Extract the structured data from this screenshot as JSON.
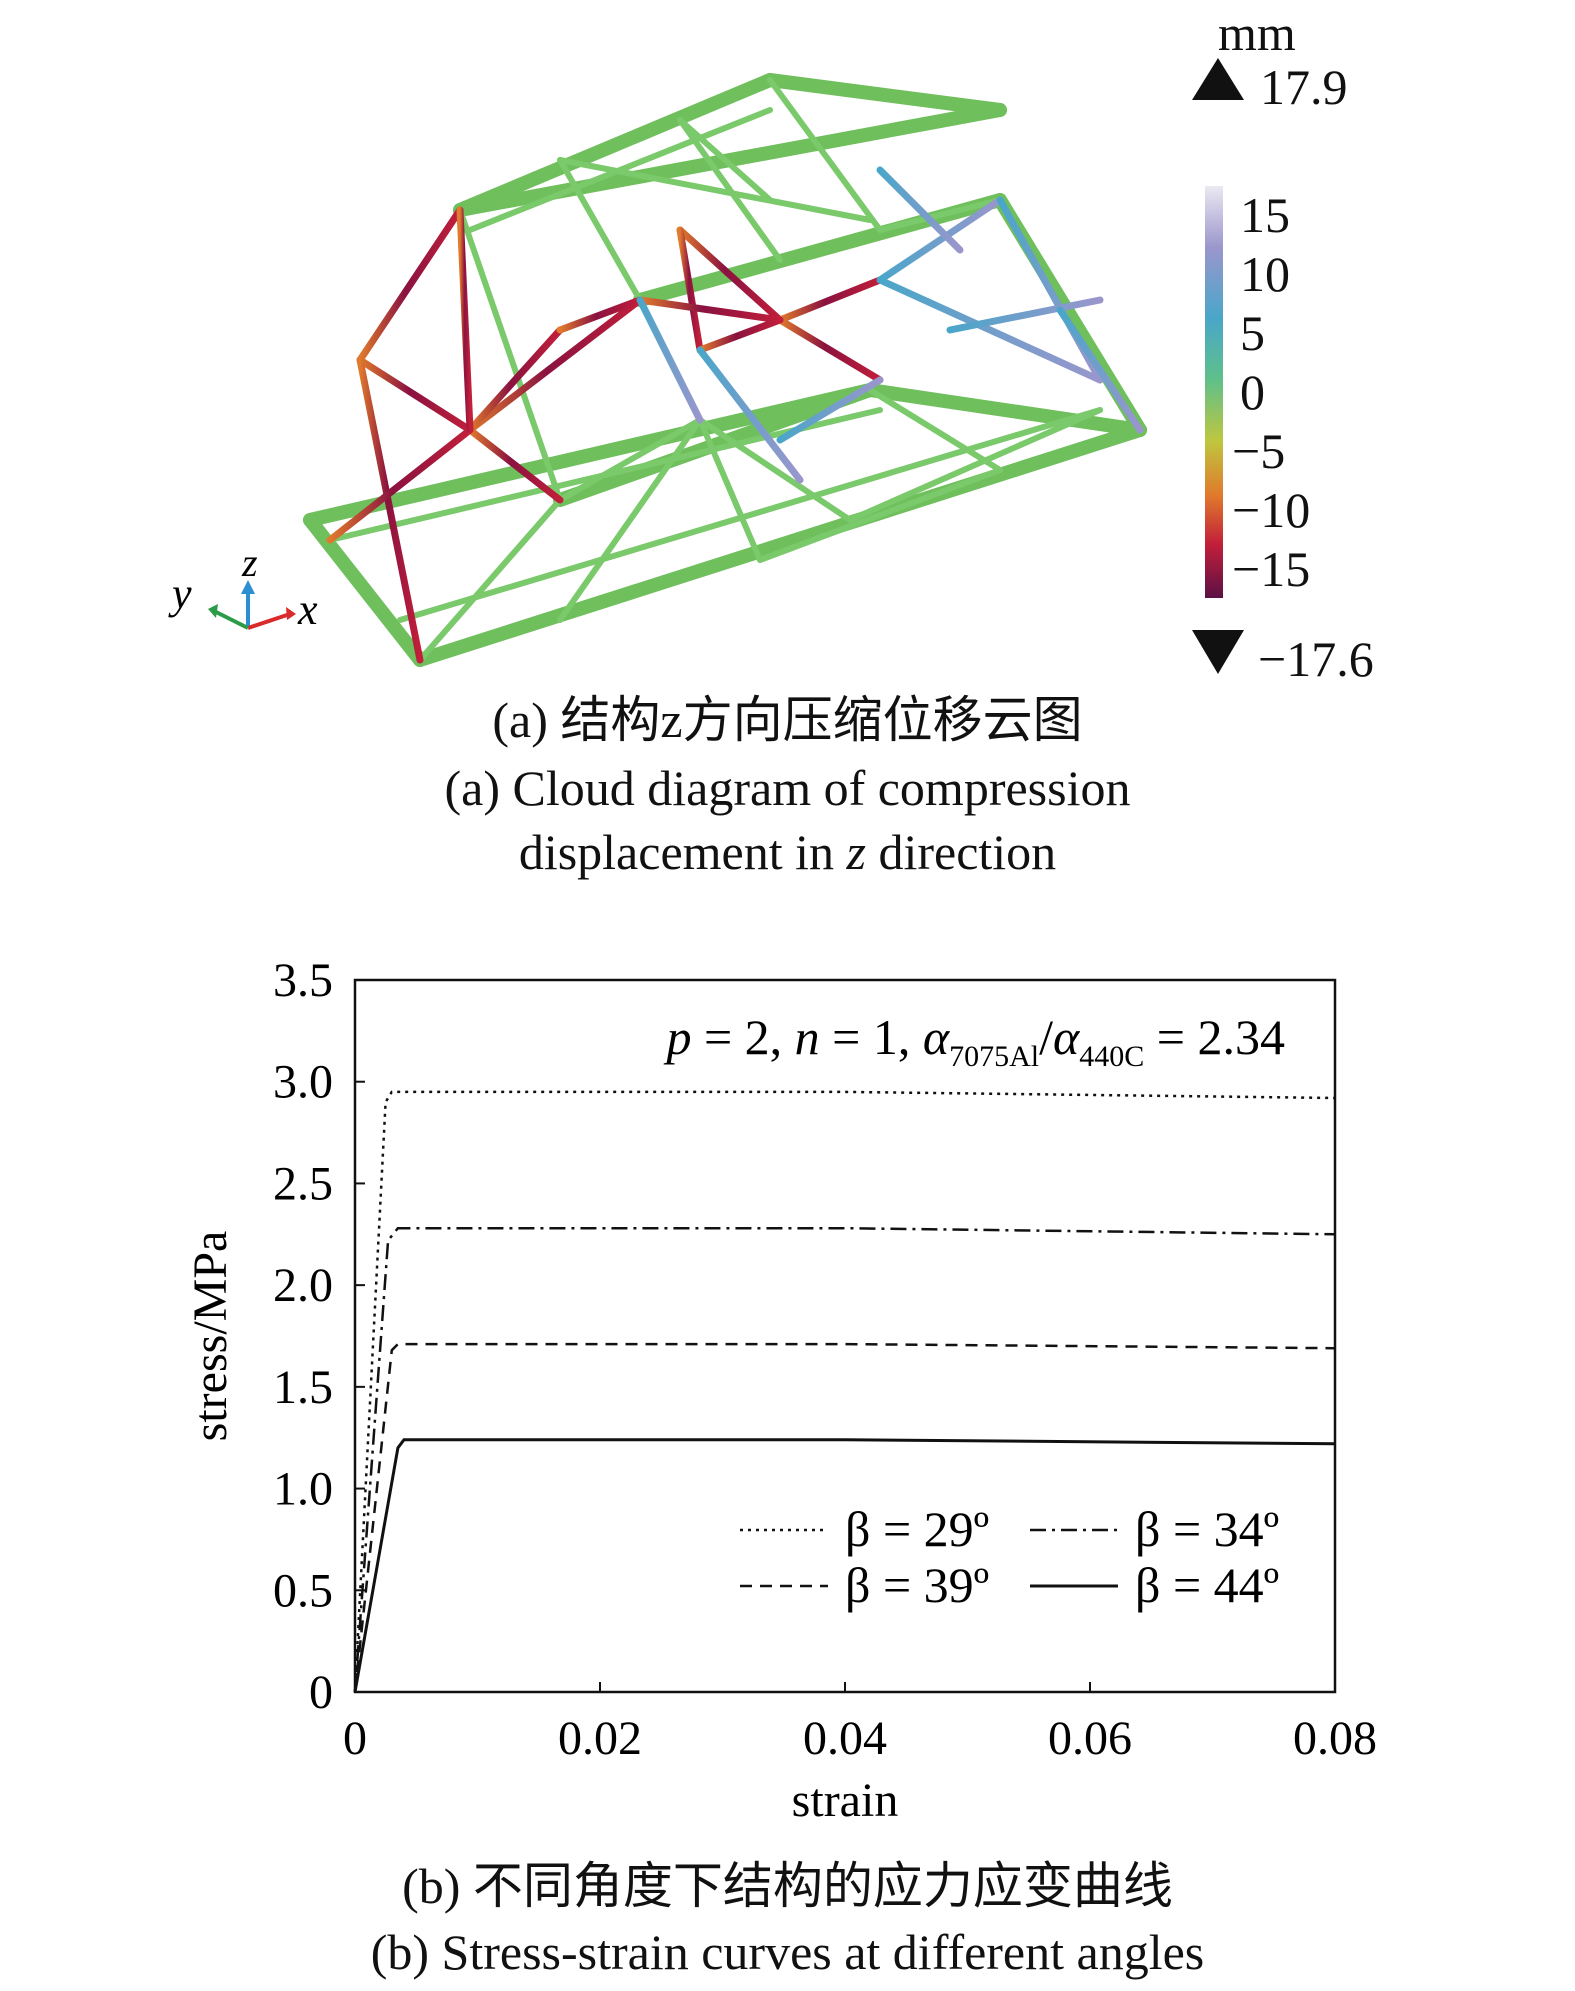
{
  "panel_a": {
    "unit": "mm",
    "max_value": "17.9",
    "min_value": "−17.6",
    "colorbar_ticks": [
      "15",
      "10",
      "5",
      "0",
      "−5",
      "−10",
      "−15"
    ],
    "colorbar_colors": [
      "#ece9f2",
      "#9a96cc",
      "#4aa6c9",
      "#5fc08a",
      "#bfc63f",
      "#e07a2c",
      "#c21f3a",
      "#5b1045"
    ],
    "axis_triad": {
      "x": "x",
      "y": "y",
      "z": "z"
    },
    "caption_cn": "(a) 结构z方向压缩位移云图",
    "caption_en_line1": "(a) Cloud diagram of compression",
    "caption_en_line2": "displacement in z direction"
  },
  "panel_b": {
    "caption_cn": "(b) 不同角度下结构的应力应变曲线",
    "caption_en": "(b) Stress-strain curves at different angles"
  },
  "chart_data": {
    "type": "line",
    "title": "",
    "annotation": "p = 2, n = 1, α7075Al/α440C = 2.34",
    "xlabel": "strain",
    "ylabel": "stress/MPa",
    "xlim": [
      0,
      0.08
    ],
    "ylim": [
      0,
      3.5
    ],
    "xticks": [
      "0",
      "0.02",
      "0.04",
      "0.06",
      "0.08"
    ],
    "yticks": [
      "0",
      "0.5",
      "1.0",
      "1.5",
      "2.0",
      "2.5",
      "3.0",
      "3.5"
    ],
    "grid": false,
    "legend_position": "bottom-right",
    "series": [
      {
        "name": "β = 29º",
        "style": "dotted",
        "x": [
          0,
          0.0025,
          0.003,
          0.04,
          0.08
        ],
        "y": [
          0,
          2.9,
          2.95,
          2.95,
          2.92
        ]
      },
      {
        "name": "β = 34º",
        "style": "dashdot",
        "x": [
          0,
          0.0027,
          0.0035,
          0.04,
          0.08
        ],
        "y": [
          0,
          2.22,
          2.28,
          2.28,
          2.25
        ]
      },
      {
        "name": "β = 39º",
        "style": "dashed",
        "x": [
          0,
          0.003,
          0.0035,
          0.04,
          0.08
        ],
        "y": [
          0,
          1.68,
          1.71,
          1.71,
          1.69
        ]
      },
      {
        "name": "β = 44º",
        "style": "solid",
        "x": [
          0,
          0.0035,
          0.004,
          0.04,
          0.08
        ],
        "y": [
          0,
          1.2,
          1.24,
          1.24,
          1.22
        ]
      }
    ]
  }
}
